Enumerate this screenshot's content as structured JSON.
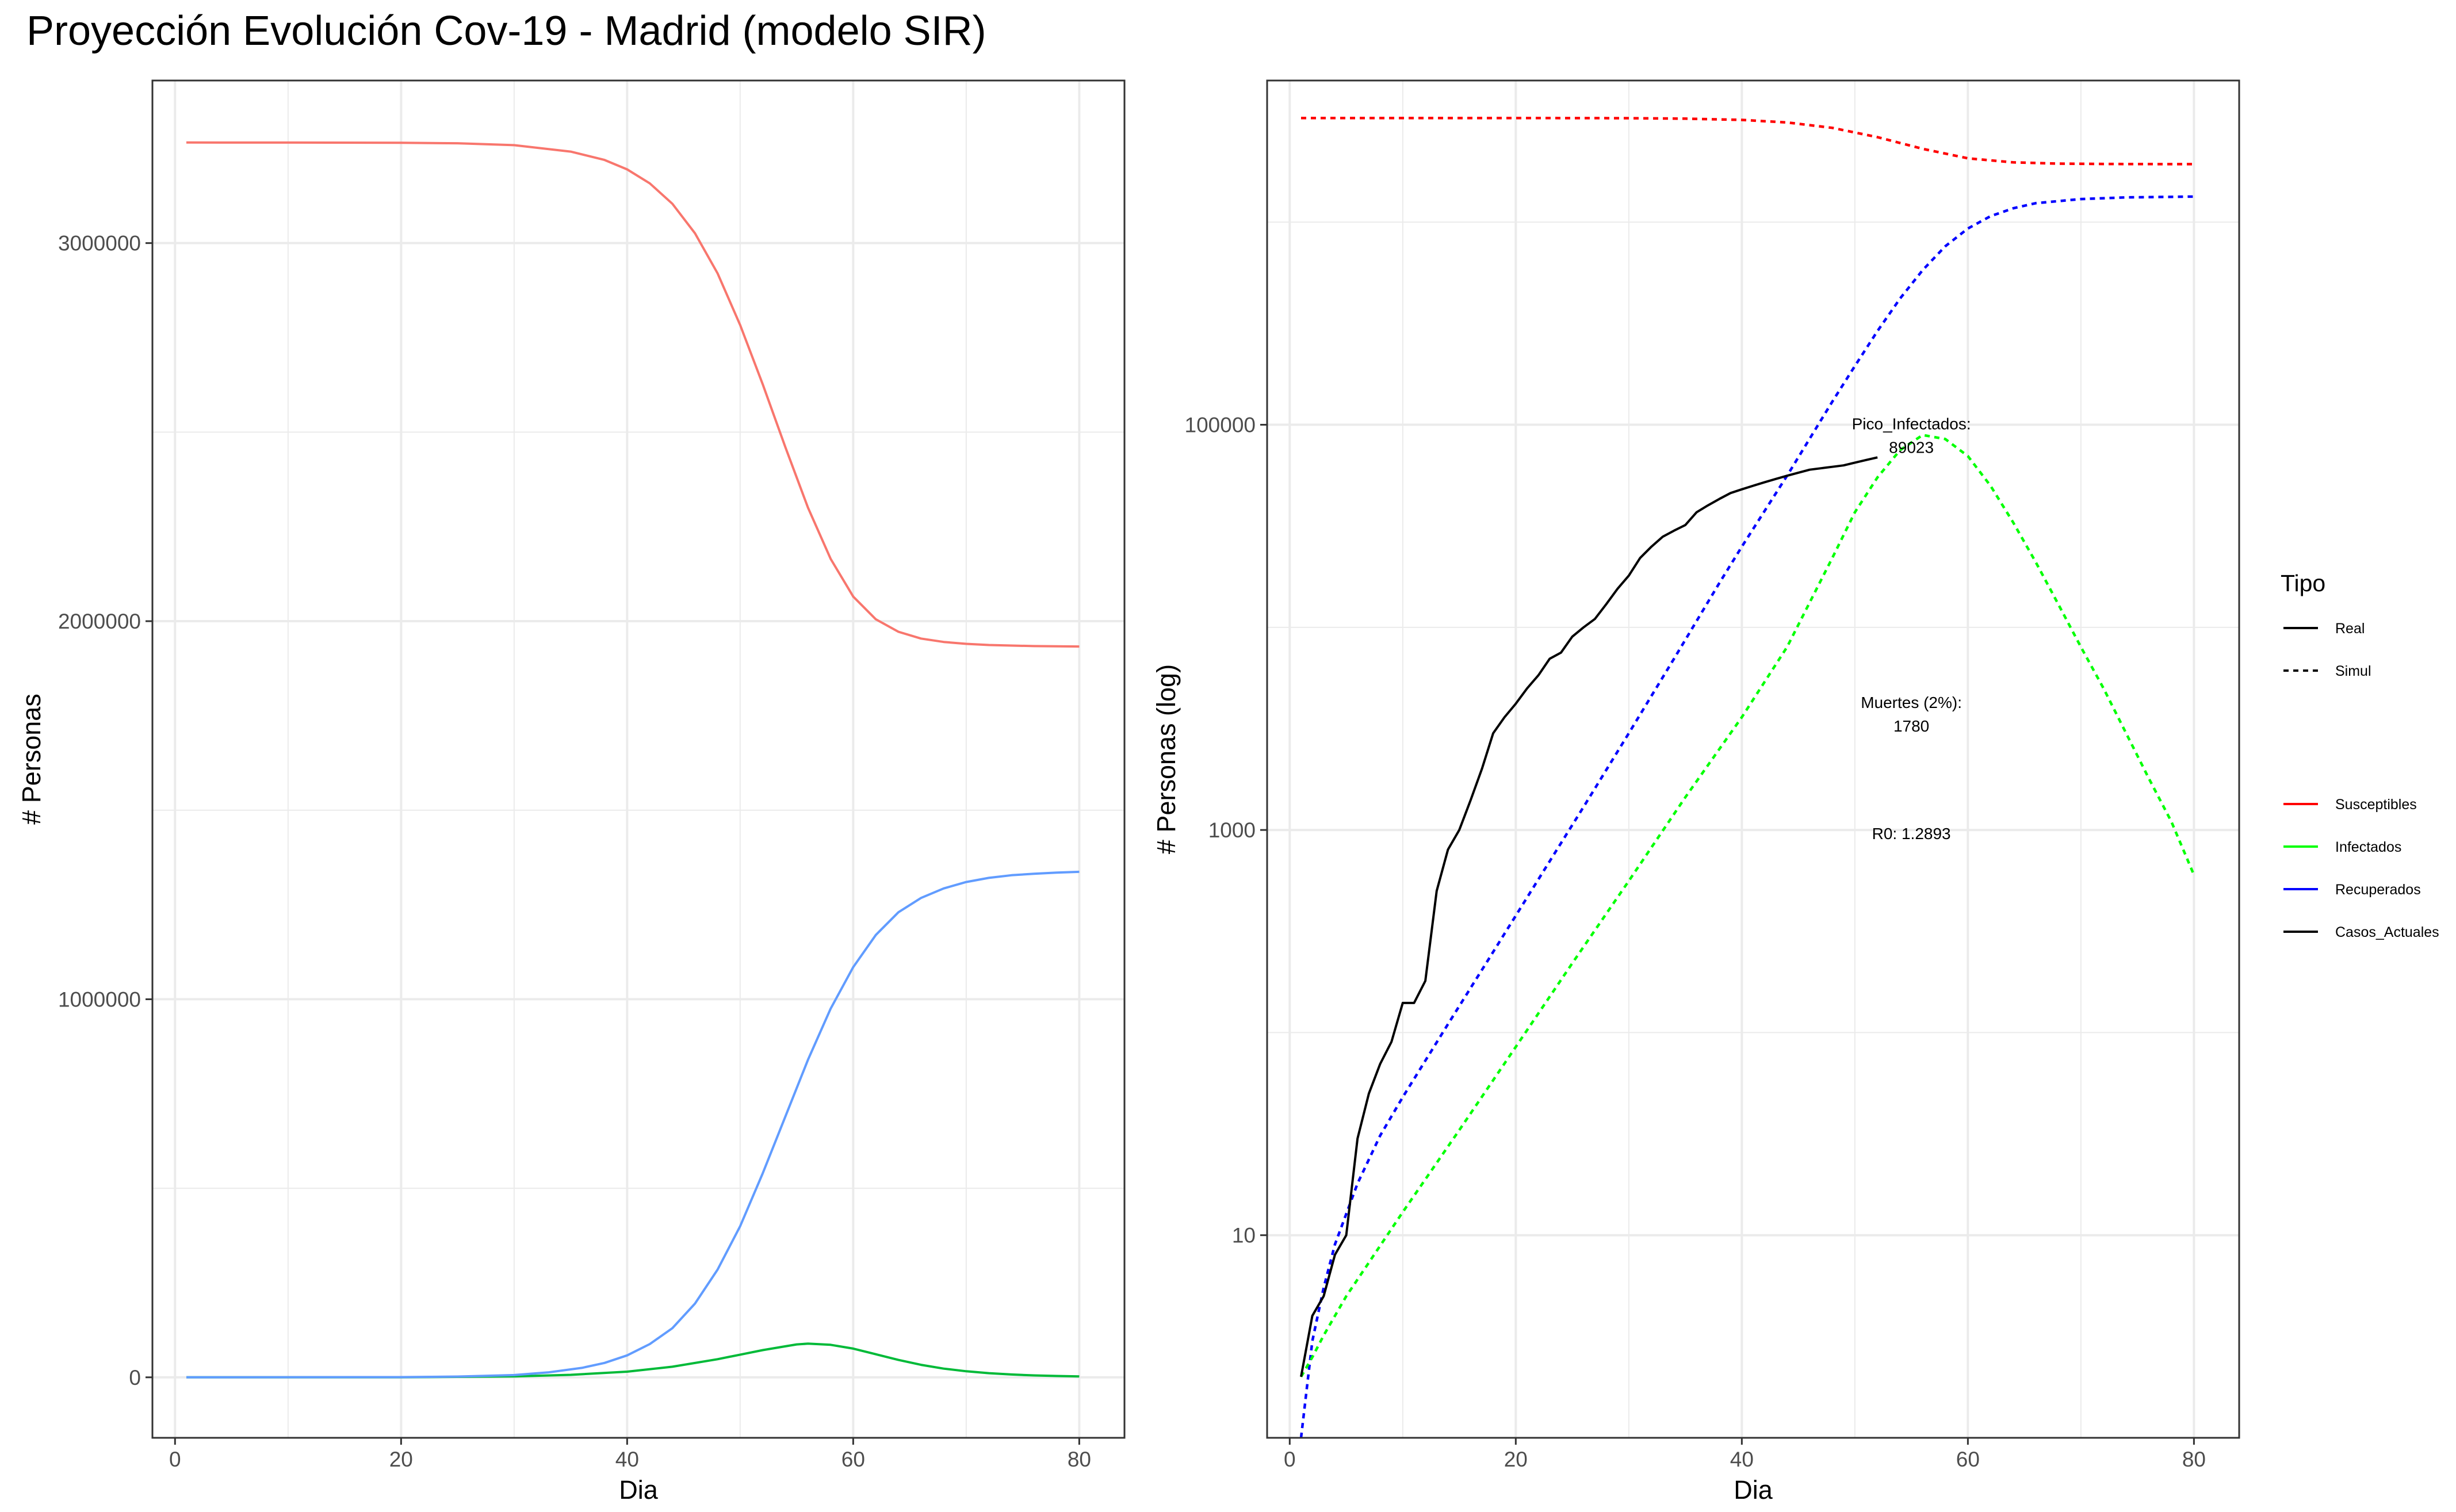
{
  "title": "Proyección Evolución Cov-19 - Madrid (modelo SIR)",
  "chart_data": [
    {
      "type": "line",
      "xlabel": "Dia",
      "ylabel": "# Personas",
      "xlim": [
        -2,
        84
      ],
      "ylim": [
        -160000,
        3430000
      ],
      "x_ticks": [
        0,
        20,
        40,
        60,
        80
      ],
      "x_tick_labels": [
        "0",
        "20",
        "40",
        "60",
        "80"
      ],
      "y_ticks": [
        0,
        1000000,
        2000000,
        3000000
      ],
      "y_tick_labels": [
        "0",
        "1000000",
        "2000000",
        "3000000"
      ],
      "grid": true,
      "series": [
        {
          "color": "#f8766d",
          "linetype": "solid",
          "points": [
            [
              1,
              3266000
            ],
            [
              10,
              3265900
            ],
            [
              20,
              3265300
            ],
            [
              25,
              3264000
            ],
            [
              30,
              3259000
            ],
            [
              35,
              3242000
            ],
            [
              38,
              3220000
            ],
            [
              40,
              3195000
            ],
            [
              42,
              3158000
            ],
            [
              44,
              3104000
            ],
            [
              46,
              3026000
            ],
            [
              48,
              2920000
            ],
            [
              50,
              2783000
            ],
            [
              52,
              2626000
            ],
            [
              54,
              2460000
            ],
            [
              56,
              2300000
            ],
            [
              58,
              2165000
            ],
            [
              60,
              2065000
            ],
            [
              62,
              2005000
            ],
            [
              64,
              1972000
            ],
            [
              66,
              1954000
            ],
            [
              68,
              1945000
            ],
            [
              70,
              1940000
            ],
            [
              72,
              1937000
            ],
            [
              76,
              1934000
            ],
            [
              80,
              1933000
            ]
          ]
        },
        {
          "color": "#00ba38",
          "linetype": "solid",
          "points": [
            [
              1,
              0
            ],
            [
              20,
              200
            ],
            [
              30,
              2500
            ],
            [
              35,
              6500
            ],
            [
              40,
              15000
            ],
            [
              44,
              28000
            ],
            [
              48,
              48000
            ],
            [
              50,
              60000
            ],
            [
              52,
              72000
            ],
            [
              54,
              82000
            ],
            [
              55,
              87000
            ],
            [
              56,
              89000
            ],
            [
              58,
              86000
            ],
            [
              60,
              76000
            ],
            [
              62,
              61000
            ],
            [
              64,
              46000
            ],
            [
              66,
              33000
            ],
            [
              68,
              23000
            ],
            [
              70,
              16000
            ],
            [
              72,
              11000
            ],
            [
              74,
              7500
            ],
            [
              76,
              5000
            ],
            [
              78,
              3500
            ],
            [
              80,
              2300
            ]
          ]
        },
        {
          "color": "#619cff",
          "linetype": "solid",
          "points": [
            [
              1,
              0
            ],
            [
              20,
              500
            ],
            [
              25,
              2000
            ],
            [
              30,
              6000
            ],
            [
              33,
              13000
            ],
            [
              36,
              25000
            ],
            [
              38,
              38000
            ],
            [
              40,
              58000
            ],
            [
              42,
              88000
            ],
            [
              44,
              130000
            ],
            [
              46,
              195000
            ],
            [
              48,
              285000
            ],
            [
              50,
              400000
            ],
            [
              52,
              540000
            ],
            [
              54,
              690000
            ],
            [
              56,
              840000
            ],
            [
              58,
              975000
            ],
            [
              60,
              1085000
            ],
            [
              62,
              1170000
            ],
            [
              64,
              1230000
            ],
            [
              66,
              1268000
            ],
            [
              68,
              1293000
            ],
            [
              70,
              1310000
            ],
            [
              72,
              1321000
            ],
            [
              74,
              1328000
            ],
            [
              76,
              1332000
            ],
            [
              78,
              1335000
            ],
            [
              80,
              1337000
            ]
          ]
        }
      ]
    },
    {
      "type": "line",
      "scale_y": "log10",
      "xlabel": "Dia",
      "ylabel": "# Personas (log)",
      "xlim": [
        -2,
        84
      ],
      "ylim": [
        1,
        5000000
      ],
      "x_ticks": [
        0,
        20,
        40,
        60,
        80
      ],
      "x_tick_labels": [
        "0",
        "20",
        "40",
        "60",
        "80"
      ],
      "y_ticks": [
        10,
        1000,
        100000
      ],
      "y_tick_labels": [
        "10",
        "1000",
        "100000"
      ],
      "grid": true,
      "legend": {
        "position": "right",
        "title": "Tipo",
        "linetype_entries": [
          {
            "label": "Real",
            "linetype": "solid"
          },
          {
            "label": "Simul",
            "linetype": "dotted"
          }
        ],
        "color_entries": [
          {
            "label": "Susceptibles",
            "color": "#ff0000"
          },
          {
            "label": "Infectados",
            "color": "#00ff00"
          },
          {
            "label": "Recuperados",
            "color": "#0000ff"
          },
          {
            "label": "Casos_Actuales",
            "color": "#000000"
          }
        ]
      },
      "annotations": [
        {
          "lines": [
            "Pico_Infectados:",
            "89023"
          ],
          "x": 55,
          "y": 95000
        },
        {
          "lines": [
            "Muertes (2%):",
            "1780"
          ],
          "x": 55,
          "y": 4000
        },
        {
          "lines": [
            "R0: 1.2893"
          ],
          "x": 55,
          "y": 900
        }
      ],
      "series": [
        {
          "name": "Susceptibles",
          "color": "#ff0000",
          "linetype": "dotted",
          "points": [
            [
              1,
              3266000
            ],
            [
              10,
              3265900
            ],
            [
              20,
              3265300
            ],
            [
              30,
              3259000
            ],
            [
              35,
              3242000
            ],
            [
              40,
              3195000
            ],
            [
              44,
              3104000
            ],
            [
              48,
              2920000
            ],
            [
              52,
              2626000
            ],
            [
              56,
              2300000
            ],
            [
              60,
              2065000
            ],
            [
              64,
              1972000
            ],
            [
              68,
              1945000
            ],
            [
              72,
              1937000
            ],
            [
              76,
              1934000
            ],
            [
              80,
              1933000
            ]
          ]
        },
        {
          "name": "Recuperados",
          "color": "#0000ff",
          "linetype": "dotted",
          "points": [
            [
              1,
              1
            ],
            [
              2,
              3
            ],
            [
              3,
              5.5
            ],
            [
              4,
              9
            ],
            [
              6,
              18
            ],
            [
              8,
              31
            ],
            [
              10,
              48
            ],
            [
              14,
              110
            ],
            [
              18,
              250
            ],
            [
              22,
              570
            ],
            [
              26,
              1300
            ],
            [
              30,
              3000
            ],
            [
              34,
              7000
            ],
            [
              38,
              16500
            ],
            [
              40,
              25000
            ],
            [
              44,
              56000
            ],
            [
              48,
              130000
            ],
            [
              50,
              195000
            ],
            [
              52,
              290000
            ],
            [
              54,
              420000
            ],
            [
              56,
              580000
            ],
            [
              58,
              760000
            ],
            [
              60,
              930000
            ],
            [
              62,
              1070000
            ],
            [
              64,
              1170000
            ],
            [
              66,
              1240000
            ],
            [
              70,
              1300000
            ],
            [
              74,
              1325000
            ],
            [
              80,
              1337000
            ]
          ]
        },
        {
          "name": "Infectados",
          "color": "#00ff00",
          "linetype": "dotted",
          "points": [
            [
              1,
              2
            ],
            [
              2,
              2.5
            ],
            [
              3,
              3.2
            ],
            [
              5,
              5
            ],
            [
              10,
              13
            ],
            [
              15,
              33
            ],
            [
              20,
              85
            ],
            [
              25,
              220
            ],
            [
              30,
              560
            ],
            [
              35,
              1450
            ],
            [
              40,
              3600
            ],
            [
              44,
              8000
            ],
            [
              48,
              22000
            ],
            [
              50,
              37000
            ],
            [
              52,
              55000
            ],
            [
              54,
              75000
            ],
            [
              56,
              89000
            ],
            [
              58,
              85000
            ],
            [
              60,
              70000
            ],
            [
              62,
              50000
            ],
            [
              64,
              33000
            ],
            [
              66,
              21000
            ],
            [
              68,
              13000
            ],
            [
              70,
              8000
            ],
            [
              72,
              5000
            ],
            [
              74,
              3000
            ],
            [
              76,
              1800
            ],
            [
              78,
              1100
            ],
            [
              80,
              600
            ]
          ]
        },
        {
          "name": "Casos_Actuales",
          "color": "#000000",
          "linetype": "solid",
          "points": [
            [
              1,
              2
            ],
            [
              2,
              4
            ],
            [
              3,
              5
            ],
            [
              4,
              8
            ],
            [
              5,
              10
            ],
            [
              6,
              30
            ],
            [
              7,
              50
            ],
            [
              8,
              70
            ],
            [
              9,
              90
            ],
            [
              10,
              140
            ],
            [
              11,
              140
            ],
            [
              12,
              180
            ],
            [
              13,
              500
            ],
            [
              14,
              800
            ],
            [
              15,
              1000
            ],
            [
              16,
              1400
            ],
            [
              17,
              2000
            ],
            [
              18,
              3000
            ],
            [
              19,
              3600
            ],
            [
              20,
              4200
            ],
            [
              21,
              5000
            ],
            [
              22,
              5800
            ],
            [
              23,
              7000
            ],
            [
              24,
              7500
            ],
            [
              25,
              9000
            ],
            [
              26,
              10000
            ],
            [
              27,
              11000
            ],
            [
              28,
              13000
            ],
            [
              29,
              15500
            ],
            [
              30,
              18000
            ],
            [
              31,
              22000
            ],
            [
              32,
              25000
            ],
            [
              33,
              28000
            ],
            [
              34,
              30000
            ],
            [
              35,
              32000
            ],
            [
              36,
              37000
            ],
            [
              37,
              40000
            ],
            [
              38,
              43000
            ],
            [
              39,
              46000
            ],
            [
              40,
              48000
            ],
            [
              41,
              50000
            ],
            [
              42,
              52000
            ],
            [
              43,
              54000
            ],
            [
              44,
              56000
            ],
            [
              45,
              58000
            ],
            [
              46,
              60000
            ],
            [
              47,
              61000
            ],
            [
              48,
              62000
            ],
            [
              49,
              63000
            ],
            [
              50,
              65000
            ],
            [
              51,
              67000
            ],
            [
              52,
              69000
            ]
          ]
        }
      ]
    }
  ]
}
